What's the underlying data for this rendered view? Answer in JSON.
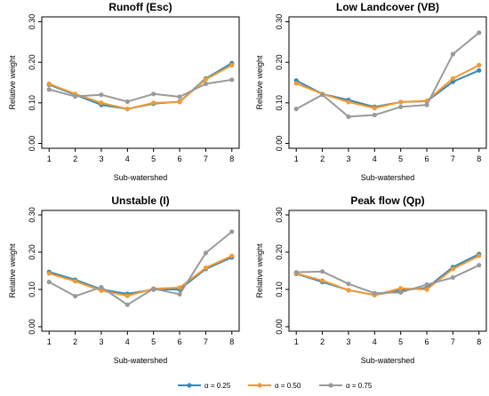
{
  "legend": {
    "items": [
      {
        "label": "α = 0.25",
        "color": "#3A89B5"
      },
      {
        "label": "α = 0.50",
        "color": "#F29A33"
      },
      {
        "label": "α = 0.75",
        "color": "#9A9A9A"
      }
    ]
  },
  "chart_data": [
    {
      "type": "line",
      "title": "Runoff (Esc)",
      "xlabel": "Sub-watershed",
      "ylabel": "Relative weight",
      "x": [
        1,
        2,
        3,
        4,
        5,
        6,
        7,
        8
      ],
      "ylim": [
        0,
        0.3
      ],
      "yticks": [
        "0.00",
        "0.10",
        "0.20",
        "0.30"
      ],
      "series": [
        {
          "name": "α = 0.25",
          "color": "#3A89B5",
          "values": [
            0.145,
            0.12,
            0.095,
            0.085,
            0.098,
            0.103,
            0.16,
            0.198
          ]
        },
        {
          "name": "α = 0.50",
          "color": "#F29A33",
          "values": [
            0.147,
            0.122,
            0.1,
            0.085,
            0.1,
            0.102,
            0.158,
            0.193
          ]
        },
        {
          "name": "α = 0.75",
          "color": "#9A9A9A",
          "values": [
            0.133,
            0.116,
            0.12,
            0.103,
            0.122,
            0.115,
            0.147,
            0.157
          ]
        }
      ]
    },
    {
      "type": "line",
      "title": "Low Landcover (VB)",
      "xlabel": "Sub-watershed",
      "ylabel": "Relative weight",
      "x": [
        1,
        2,
        3,
        4,
        5,
        6,
        7,
        8
      ],
      "ylim": [
        0,
        0.3
      ],
      "yticks": [
        "0.00",
        "0.10",
        "0.20",
        "0.30"
      ],
      "series": [
        {
          "name": "α = 0.25",
          "color": "#3A89B5",
          "values": [
            0.155,
            0.122,
            0.107,
            0.09,
            0.102,
            0.104,
            0.152,
            0.18
          ]
        },
        {
          "name": "α = 0.50",
          "color": "#F29A33",
          "values": [
            0.148,
            0.122,
            0.102,
            0.087,
            0.102,
            0.105,
            0.16,
            0.193
          ]
        },
        {
          "name": "α = 0.75",
          "color": "#9A9A9A",
          "values": [
            0.085,
            0.12,
            0.066,
            0.07,
            0.09,
            0.095,
            0.22,
            0.273
          ]
        }
      ]
    },
    {
      "type": "line",
      "title": "Unstable (I)",
      "xlabel": "Sub-watershed",
      "ylabel": "Relative weight",
      "x": [
        1,
        2,
        3,
        4,
        5,
        6,
        7,
        8
      ],
      "ylim": [
        0,
        0.3
      ],
      "yticks": [
        "0.00",
        "0.10",
        "0.20",
        "0.30"
      ],
      "series": [
        {
          "name": "α = 0.25",
          "color": "#3A89B5",
          "values": [
            0.147,
            0.126,
            0.1,
            0.088,
            0.1,
            0.1,
            0.155,
            0.186
          ]
        },
        {
          "name": "α = 0.50",
          "color": "#F29A33",
          "values": [
            0.143,
            0.122,
            0.097,
            0.083,
            0.102,
            0.105,
            0.158,
            0.19
          ]
        },
        {
          "name": "α = 0.75",
          "color": "#9A9A9A",
          "values": [
            0.12,
            0.082,
            0.106,
            0.059,
            0.102,
            0.087,
            0.198,
            0.255
          ]
        }
      ]
    },
    {
      "type": "line",
      "title": "Peak flow (Qp)",
      "xlabel": "Sub-watershed",
      "ylabel": "Relative weight",
      "x": [
        1,
        2,
        3,
        4,
        5,
        6,
        7,
        8
      ],
      "ylim": [
        0,
        0.3
      ],
      "yticks": [
        "0.00",
        "0.10",
        "0.20",
        "0.30"
      ],
      "series": [
        {
          "name": "α = 0.25",
          "color": "#3A89B5",
          "values": [
            0.142,
            0.12,
            0.098,
            0.085,
            0.098,
            0.104,
            0.16,
            0.195
          ]
        },
        {
          "name": "α = 0.50",
          "color": "#F29A33",
          "values": [
            0.143,
            0.124,
            0.098,
            0.085,
            0.103,
            0.1,
            0.155,
            0.19
          ]
        },
        {
          "name": "α = 0.75",
          "color": "#9A9A9A",
          "values": [
            0.146,
            0.148,
            0.115,
            0.09,
            0.092,
            0.113,
            0.132,
            0.165
          ]
        }
      ]
    }
  ]
}
